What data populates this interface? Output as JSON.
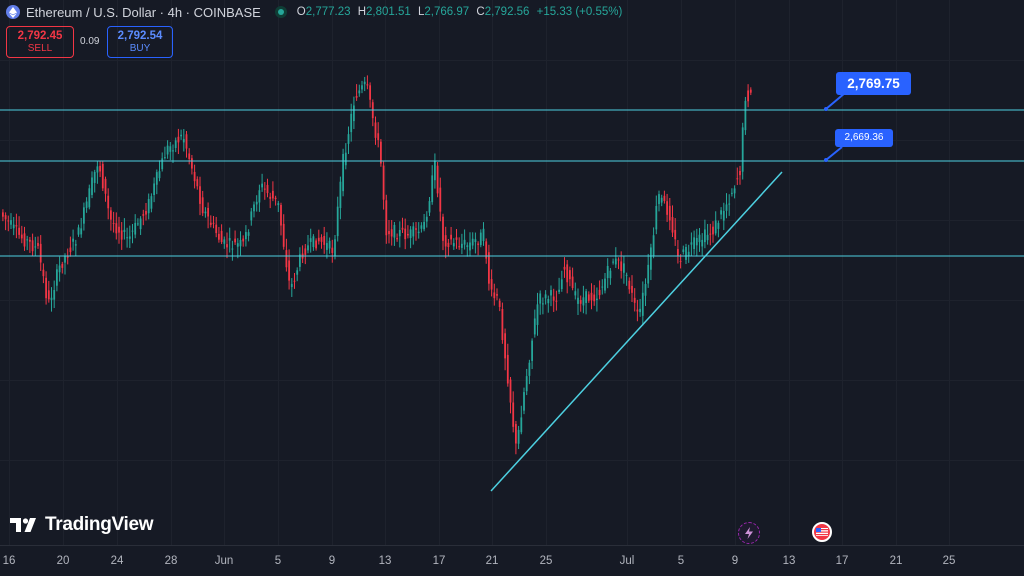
{
  "header": {
    "symbol": "Ethereum / U.S. Dollar · 4h · COINBASE",
    "o_label": "O",
    "o_value": "2,777.23",
    "h_label": "H",
    "h_value": "2,801.51",
    "l_label": "L",
    "l_value": "2,766.97",
    "c_label": "C",
    "c_value": "2,792.56",
    "change": "+15.33 (+0.55%)"
  },
  "trade": {
    "sell_price": "2,792.45",
    "sell_label": "SELL",
    "spread": "0.09",
    "buy_price": "2,792.54",
    "buy_label": "BUY"
  },
  "price_labels": {
    "upper": "2,769.75",
    "lower": "2,669.36"
  },
  "logo": "TradingView",
  "time_axis": [
    "16",
    "20",
    "24",
    "28",
    "Jun",
    "5",
    "9",
    "13",
    "17",
    "21",
    "25",
    "Jul",
    "5",
    "9",
    "13",
    "17",
    "21",
    "25"
  ],
  "icons": {
    "event_1": "lightning-event-icon",
    "event_2": "us-flag-event-icon"
  },
  "colors": {
    "up": "#26a69a",
    "down": "#f23645",
    "line": "#4dd0e1",
    "label": "#2962ff"
  },
  "chart_data": {
    "type": "candlestick",
    "title": "Ethereum / U.S. Dollar · 4h · COINBASE",
    "interval": "4h",
    "horizontal_levels": [
      2769.75,
      2669.36
    ],
    "last": {
      "open": 2777.23,
      "high": 2801.51,
      "low": 2766.97,
      "close": 2792.56
    }
  }
}
